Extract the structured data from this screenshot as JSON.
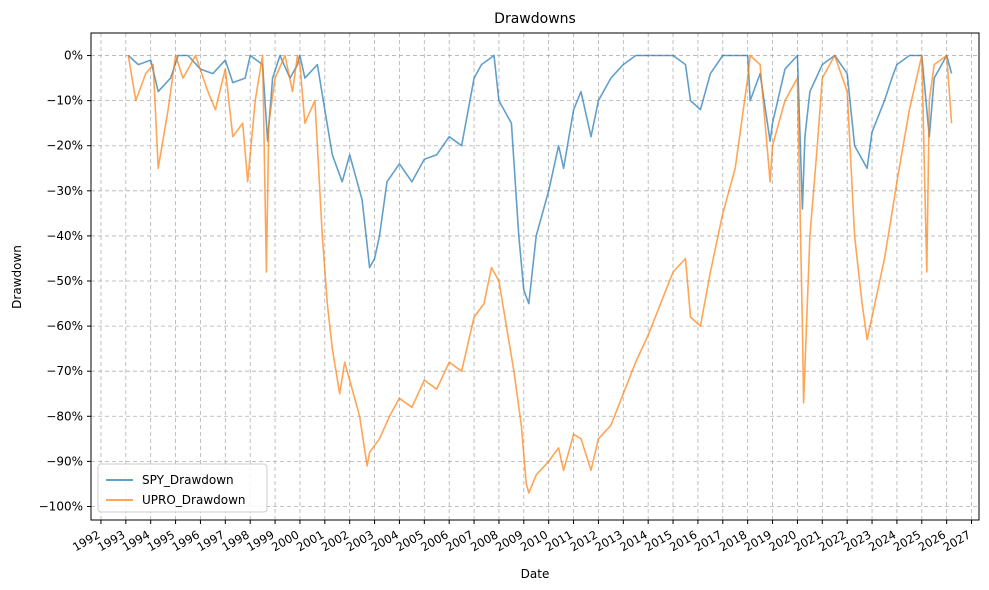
{
  "chart_data": {
    "type": "line",
    "title": "Drawdowns",
    "xlabel": "Date",
    "ylabel": "Drawdown",
    "xlim": [
      1991.6,
      2027.3
    ],
    "ylim": [
      -103,
      5
    ],
    "grid": true,
    "legend_position": "lower-left",
    "x_ticks": [
      1992,
      1993,
      1994,
      1995,
      1996,
      1997,
      1998,
      1999,
      2000,
      2001,
      2002,
      2003,
      2004,
      2005,
      2006,
      2007,
      2008,
      2009,
      2010,
      2011,
      2012,
      2013,
      2014,
      2015,
      2016,
      2017,
      2018,
      2019,
      2020,
      2021,
      2022,
      2023,
      2024,
      2025,
      2026,
      2027
    ],
    "x_tick_labels": [
      "1992",
      "1993",
      "1994",
      "1995",
      "1996",
      "1997",
      "1998",
      "1999",
      "2000",
      "2001",
      "2002",
      "2003",
      "2004",
      "2005",
      "2006",
      "2007",
      "2008",
      "2009",
      "2010",
      "2011",
      "2012",
      "2013",
      "2014",
      "2015",
      "2016",
      "2017",
      "2018",
      "2019",
      "2020",
      "2021",
      "2022",
      "2023",
      "2024",
      "2025",
      "2026",
      "2027"
    ],
    "y_ticks": [
      0,
      -10,
      -20,
      -30,
      -40,
      -50,
      -60,
      -70,
      -80,
      -90,
      -100
    ],
    "y_tick_labels": [
      "0%",
      "−10%",
      "−20%",
      "−30%",
      "−40%",
      "−50%",
      "−60%",
      "−70%",
      "−80%",
      "−90%",
      "−100%"
    ],
    "series": [
      {
        "name": "SPY_Drawdown",
        "color": "#1f77b4",
        "x": [
          1993.1,
          1993.5,
          1994.0,
          1994.3,
          1994.8,
          1995.1,
          1995.5,
          1996.0,
          1996.5,
          1997.0,
          1997.3,
          1997.8,
          1998.0,
          1998.5,
          1998.7,
          1998.9,
          1999.2,
          1999.6,
          1999.9,
          2000.0,
          2000.2,
          2000.7,
          2001.0,
          2001.3,
          2001.7,
          2002.0,
          2002.5,
          2002.8,
          2003.0,
          2003.2,
          2003.5,
          2004.0,
          2004.5,
          2005.0,
          2005.5,
          2006.0,
          2006.5,
          2007.0,
          2007.3,
          2007.8,
          2008.0,
          2008.5,
          2008.8,
          2009.0,
          2009.2,
          2009.5,
          2010.0,
          2010.4,
          2010.6,
          2011.0,
          2011.3,
          2011.7,
          2012.0,
          2012.5,
          2013.0,
          2013.5,
          2014.0,
          2014.5,
          2015.0,
          2015.5,
          2015.7,
          2016.1,
          2016.5,
          2017.0,
          2017.5,
          2018.0,
          2018.1,
          2018.5,
          2018.9,
          2019.0,
          2019.5,
          2020.0,
          2020.2,
          2020.3,
          2020.5,
          2021.0,
          2021.5,
          2022.0,
          2022.3,
          2022.5,
          2022.8,
          2023.0,
          2023.5,
          2023.8,
          2024.0,
          2024.5,
          2025.0,
          2025.3,
          2025.5,
          2026.0,
          2026.2
        ],
        "y": [
          0,
          -2,
          -1,
          -8,
          -5,
          0,
          0,
          -3,
          -4,
          -1,
          -6,
          -5,
          0,
          -2,
          -19,
          -5,
          0,
          -5,
          -2,
          0,
          -5,
          -2,
          -12,
          -22,
          -28,
          -22,
          -32,
          -47,
          -45,
          -40,
          -28,
          -24,
          -28,
          -23,
          -22,
          -18,
          -20,
          -5,
          -2,
          0,
          -10,
          -15,
          -40,
          -52,
          -55,
          -40,
          -30,
          -20,
          -25,
          -12,
          -8,
          -18,
          -10,
          -5,
          -2,
          0,
          0,
          0,
          0,
          -2,
          -10,
          -12,
          -4,
          0,
          0,
          0,
          -10,
          -4,
          -19,
          -15,
          -3,
          0,
          -34,
          -18,
          -8,
          -2,
          0,
          -4,
          -20,
          -22,
          -25,
          -17,
          -10,
          -5,
          -2,
          0,
          0,
          -18,
          -5,
          0,
          -4
        ]
      },
      {
        "name": "UPRO_Drawdown",
        "color": "#ff7f0e",
        "x": [
          1993.1,
          1993.4,
          1993.8,
          1994.1,
          1994.3,
          1994.7,
          1995.0,
          1995.3,
          1995.8,
          1996.3,
          1996.6,
          1997.0,
          1997.3,
          1997.7,
          1997.9,
          1998.2,
          1998.5,
          1998.65,
          1998.75,
          1999.0,
          1999.4,
          1999.7,
          1999.9,
          2000.0,
          2000.2,
          2000.6,
          2000.9,
          2001.1,
          2001.3,
          2001.6,
          2001.8,
          2002.0,
          2002.4,
          2002.7,
          2002.8,
          2003.2,
          2003.6,
          2004.0,
          2004.5,
          2005.0,
          2005.5,
          2006.0,
          2006.5,
          2007.0,
          2007.4,
          2007.7,
          2008.0,
          2008.3,
          2008.6,
          2008.9,
          2009.1,
          2009.2,
          2009.5,
          2010.0,
          2010.4,
          2010.6,
          2011.0,
          2011.3,
          2011.7,
          2012.0,
          2012.5,
          2013.0,
          2013.5,
          2014.0,
          2014.5,
          2015.0,
          2015.5,
          2015.7,
          2016.1,
          2016.5,
          2017.0,
          2017.5,
          2018.0,
          2018.1,
          2018.5,
          2018.9,
          2019.0,
          2019.5,
          2020.0,
          2020.2,
          2020.25,
          2020.5,
          2020.8,
          2021.0,
          2021.5,
          2022.0,
          2022.3,
          2022.6,
          2022.8,
          2023.0,
          2023.5,
          2023.8,
          2024.0,
          2024.5,
          2025.0,
          2025.2,
          2025.3,
          2025.5,
          2026.0,
          2026.2
        ],
        "y": [
          0,
          -10,
          -4,
          -2,
          -25,
          -12,
          0,
          -5,
          0,
          -8,
          -12,
          -3,
          -18,
          -15,
          -28,
          -10,
          0,
          -48,
          -15,
          -5,
          0,
          -8,
          0,
          -2,
          -15,
          -10,
          -40,
          -55,
          -65,
          -75,
          -68,
          -72,
          -80,
          -91,
          -88,
          -85,
          -80,
          -76,
          -78,
          -72,
          -74,
          -68,
          -70,
          -58,
          -55,
          -47,
          -50,
          -60,
          -70,
          -82,
          -95,
          -97,
          -93,
          -90,
          -87,
          -92,
          -84,
          -85,
          -92,
          -85,
          -82,
          -75,
          -68,
          -62,
          -55,
          -48,
          -45,
          -58,
          -60,
          -48,
          -35,
          -25,
          -5,
          0,
          -2,
          -28,
          -20,
          -10,
          -5,
          -60,
          -77,
          -40,
          -20,
          -5,
          0,
          -8,
          -40,
          -55,
          -63,
          -58,
          -45,
          -35,
          -28,
          -12,
          0,
          -48,
          -10,
          -2,
          0,
          -15
        ]
      }
    ]
  }
}
